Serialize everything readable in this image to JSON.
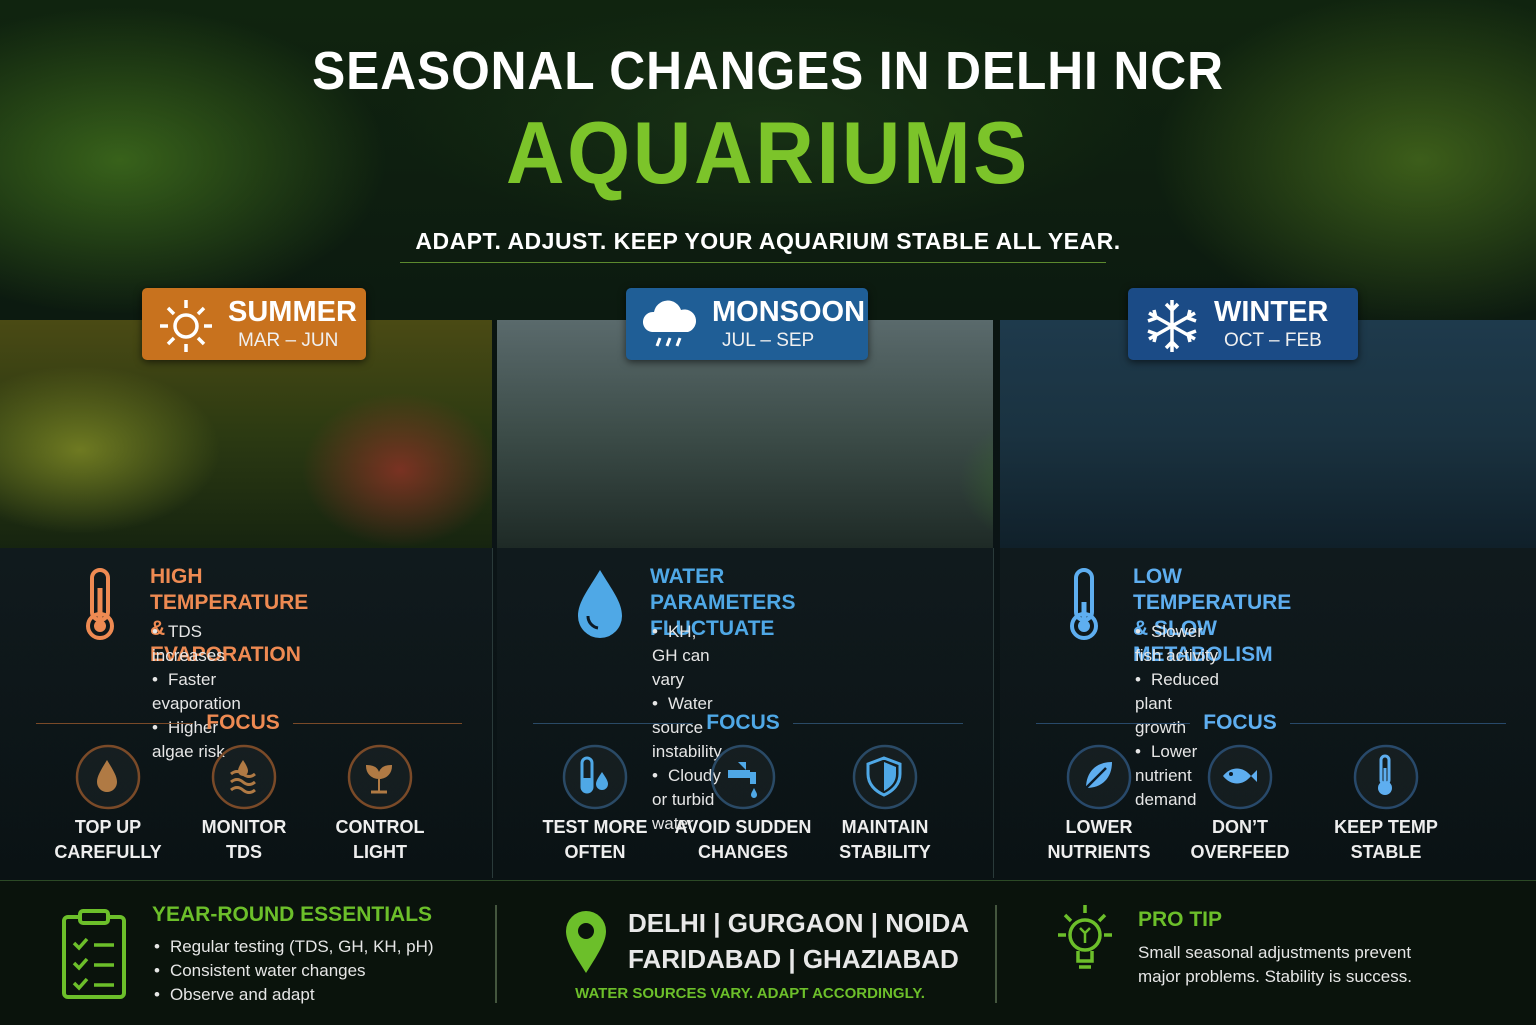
{
  "header": {
    "title_line1": "SEASONAL CHANGES IN DELHI NCR",
    "title_line2": "AQUARIUMS",
    "tagline": "ADAPT. ADJUST. KEEP YOUR AQUARIUM STABLE ALL YEAR."
  },
  "seasons": [
    {
      "name": "SUMMER",
      "months": "MAR – JUN",
      "heading_lines": [
        "HIGH TEMPERATURE",
        "& EVAPORATION"
      ],
      "bullets": [
        "TDS increases",
        "Faster evaporation",
        "Higher algae risk"
      ],
      "focus_label": "FOCUS",
      "focus_items": [
        {
          "lines": [
            "TOP UP",
            "CAREFULLY"
          ]
        },
        {
          "lines": [
            "MONITOR",
            "TDS"
          ]
        },
        {
          "lines": [
            "CONTROL",
            "LIGHT"
          ]
        }
      ]
    },
    {
      "name": "MONSOON",
      "months": "JUL – SEP",
      "heading_lines": [
        "WATER PARAMETERS",
        "FLUCTUATE"
      ],
      "bullets": [
        "KH, GH can vary",
        "Water source instability",
        "Cloudy or turbid water"
      ],
      "focus_label": "FOCUS",
      "focus_items": [
        {
          "lines": [
            "TEST MORE",
            "OFTEN"
          ]
        },
        {
          "lines": [
            "AVOID SUDDEN",
            "CHANGES"
          ]
        },
        {
          "lines": [
            "MAINTAIN",
            "STABILITY"
          ]
        }
      ]
    },
    {
      "name": "WINTER",
      "months": "OCT – FEB",
      "heading_lines": [
        "LOW TEMPERATURE",
        "& SLOW METABOLISM"
      ],
      "bullets": [
        "Slower fish activity",
        "Reduced plant growth",
        "Lower nutrient demand"
      ],
      "focus_label": "FOCUS",
      "focus_items": [
        {
          "lines": [
            "LOWER",
            "NUTRIENTS"
          ]
        },
        {
          "lines": [
            "DON’T",
            "OVERFEED"
          ]
        },
        {
          "lines": [
            "KEEP TEMP",
            "STABLE"
          ]
        }
      ]
    }
  ],
  "footer": {
    "essentials": {
      "title": "YEAR-ROUND ESSENTIALS",
      "bullets": [
        "Regular testing (TDS, GH, KH, pH)",
        "Consistent water changes",
        "Observe and adapt"
      ]
    },
    "locations": {
      "lines": [
        "DELHI | GURGAON | NOIDA",
        "FARIDABAD | GHAZIABAD"
      ],
      "note": "WATER SOURCES VARY. ADAPT ACCORDINGLY."
    },
    "pro_tip": {
      "title": "PRO TIP",
      "text_lines": [
        "Small seasonal adjustments prevent",
        "major problems. Stability is success."
      ]
    }
  }
}
